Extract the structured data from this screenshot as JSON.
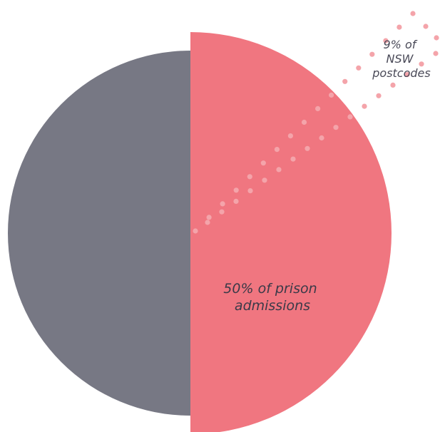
{
  "chart_data": {
    "type": "pie",
    "title": "",
    "slices": [
      {
        "label": "50% of prison admissions",
        "value": 50,
        "color": "#f07680"
      },
      {
        "label": "",
        "value": 50,
        "color": "#777884"
      }
    ],
    "annotation": {
      "label_lines": [
        "9% of",
        "NSW",
        "postcodes"
      ],
      "value": 9,
      "dot_color": "#f4a4aa"
    }
  },
  "labels": {
    "prison_line1": "50% of prison",
    "prison_line2": "admissions",
    "postcode_line1": "9% of",
    "postcode_line2": "NSW",
    "postcode_line3": "postcodes"
  }
}
